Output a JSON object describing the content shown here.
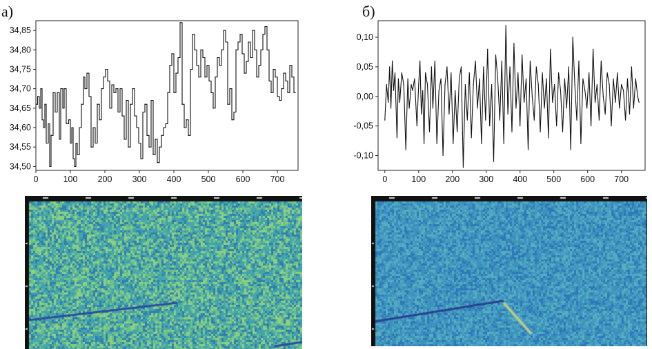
{
  "panels": {
    "a": {
      "label": "а)"
    },
    "b": {
      "label": "б)"
    }
  },
  "chart_data": [
    {
      "type": "line",
      "panel": "а)",
      "xlim": [
        0,
        760
      ],
      "ylim": [
        34.49,
        34.875
      ],
      "xticks": [
        0,
        100,
        200,
        300,
        400,
        500,
        600,
        700
      ],
      "xtick_labels": [
        "0",
        "100",
        "200",
        "300",
        "400",
        "500",
        "600",
        "700"
      ],
      "yticks": [
        34.5,
        34.55,
        34.6,
        34.65,
        34.7,
        34.75,
        34.8,
        34.85
      ],
      "ytick_labels": [
        "34,50",
        "34,55",
        "34,60",
        "34,65",
        "34,70",
        "34,75",
        "34,80",
        "34,85"
      ],
      "grid": false,
      "step": true,
      "x": [
        0,
        5,
        10,
        14,
        18,
        22,
        26,
        30,
        36,
        40,
        44,
        50,
        56,
        62,
        68,
        72,
        78,
        82,
        88,
        95,
        100,
        104,
        108,
        112,
        116,
        120,
        126,
        132,
        138,
        142,
        148,
        154,
        160,
        166,
        172,
        178,
        184,
        190,
        196,
        202,
        208,
        214,
        220,
        226,
        232,
        238,
        244,
        250,
        256,
        262,
        268,
        274,
        280,
        286,
        292,
        298,
        304,
        310,
        316,
        322,
        328,
        334,
        340,
        346,
        352,
        358,
        364,
        370,
        376,
        382,
        388,
        394,
        400,
        406,
        412,
        418,
        424,
        430,
        436,
        442,
        448,
        454,
        460,
        466,
        472,
        478,
        484,
        490,
        496,
        502,
        508,
        514,
        520,
        526,
        532,
        538,
        544,
        550,
        556,
        562,
        568,
        574,
        580,
        586,
        592,
        598,
        604,
        610,
        616,
        622,
        628,
        634,
        640,
        646,
        652,
        658,
        664,
        670,
        676,
        682,
        688,
        694,
        700,
        706,
        712,
        718,
        724,
        730,
        736,
        742,
        748,
        752
      ],
      "y": [
        34.66,
        34.68,
        34.65,
        34.7,
        34.62,
        34.6,
        34.66,
        34.56,
        34.61,
        34.5,
        34.58,
        34.69,
        34.64,
        34.69,
        34.57,
        34.7,
        34.65,
        34.7,
        34.61,
        34.62,
        34.56,
        34.6,
        34.52,
        34.5,
        34.56,
        34.53,
        34.6,
        34.66,
        34.73,
        34.7,
        34.74,
        34.68,
        34.55,
        34.6,
        34.56,
        34.66,
        34.62,
        34.7,
        34.73,
        34.75,
        34.72,
        34.65,
        34.71,
        34.69,
        34.7,
        34.64,
        34.7,
        34.63,
        34.57,
        34.67,
        34.55,
        34.66,
        34.7,
        34.63,
        34.6,
        34.56,
        34.52,
        34.64,
        34.66,
        34.58,
        34.55,
        34.67,
        34.53,
        34.57,
        34.51,
        34.55,
        34.58,
        34.6,
        34.61,
        34.69,
        34.76,
        34.79,
        34.69,
        34.74,
        34.78,
        34.87,
        34.66,
        34.6,
        34.62,
        34.58,
        34.75,
        34.84,
        34.8,
        34.76,
        34.73,
        34.8,
        34.78,
        34.73,
        34.76,
        34.72,
        34.69,
        34.65,
        34.73,
        34.78,
        34.76,
        34.8,
        34.85,
        34.82,
        34.66,
        34.7,
        34.62,
        34.64,
        34.8,
        34.82,
        34.84,
        34.79,
        34.74,
        34.77,
        34.82,
        34.78,
        34.85,
        34.8,
        34.73,
        34.76,
        34.8,
        34.84,
        34.86,
        34.8,
        34.72,
        34.69,
        34.75,
        34.73,
        34.68,
        34.67,
        34.7,
        34.74,
        34.72,
        34.69,
        34.76,
        34.73,
        34.69,
        34.69
      ]
    },
    {
      "type": "line",
      "panel": "б)",
      "xlim": [
        -20,
        770
      ],
      "ylim": [
        -0.125,
        0.128
      ],
      "xticks": [
        0,
        100,
        200,
        300,
        400,
        500,
        600,
        700
      ],
      "xtick_labels": [
        "0",
        "100",
        "200",
        "300",
        "400",
        "500",
        "600",
        "700"
      ],
      "yticks": [
        -0.1,
        -0.05,
        0.0,
        0.05,
        0.1
      ],
      "ytick_labels": [
        "-0,10",
        "-0,05",
        "0,00",
        "0,05",
        "0,10"
      ],
      "grid": false,
      "step": false,
      "x": [
        0,
        5,
        10,
        14,
        18,
        22,
        26,
        30,
        36,
        40,
        44,
        50,
        56,
        62,
        68,
        72,
        78,
        82,
        88,
        95,
        100,
        104,
        108,
        112,
        116,
        120,
        126,
        132,
        138,
        142,
        148,
        154,
        160,
        166,
        172,
        178,
        184,
        190,
        196,
        202,
        208,
        214,
        220,
        226,
        232,
        238,
        244,
        250,
        256,
        262,
        268,
        274,
        280,
        286,
        292,
        298,
        304,
        310,
        316,
        322,
        328,
        334,
        340,
        346,
        352,
        358,
        364,
        370,
        376,
        382,
        388,
        394,
        400,
        406,
        412,
        418,
        424,
        430,
        436,
        442,
        448,
        454,
        460,
        466,
        472,
        478,
        484,
        490,
        496,
        502,
        508,
        514,
        520,
        526,
        532,
        538,
        544,
        550,
        556,
        562,
        568,
        574,
        580,
        586,
        592,
        598,
        604,
        610,
        616,
        622,
        628,
        634,
        640,
        646,
        652,
        658,
        664,
        670,
        676,
        682,
        688,
        694,
        700,
        706,
        712,
        718,
        724,
        730,
        736,
        742,
        748,
        752
      ],
      "y": [
        -0.04,
        0.02,
        -0.01,
        0.05,
        -0.02,
        0.06,
        0.01,
        0.04,
        -0.07,
        0.03,
        -0.01,
        0.04,
        0.02,
        -0.09,
        0.03,
        -0.02,
        0.02,
        0.01,
        0.03,
        -0.05,
        0.02,
        0.06,
        -0.03,
        0.01,
        -0.08,
        0.04,
        0.02,
        -0.06,
        0.05,
        -0.02,
        0.06,
        -0.08,
        0.01,
        0.03,
        -0.1,
        0.02,
        0.05,
        -0.03,
        0.04,
        -0.08,
        0.01,
        -0.06,
        0.03,
        0.05,
        -0.12,
        0.02,
        -0.04,
        0.04,
        -0.07,
        0.02,
        0.06,
        -0.02,
        0.03,
        -0.08,
        0.05,
        -0.04,
        0.08,
        -0.05,
        0.02,
        -0.11,
        0.07,
        0.03,
        -0.04,
        0.06,
        -0.08,
        0.12,
        -0.03,
        0.05,
        -0.06,
        0.09,
        -0.02,
        0.04,
        -0.05,
        0.07,
        -0.01,
        0.03,
        -0.09,
        0.06,
        0.0,
        -0.04,
        0.05,
        0.02,
        -0.06,
        0.04,
        -0.02,
        0.03,
        -0.07,
        0.08,
        -0.01,
        0.02,
        -0.05,
        0.04,
        0.01,
        -0.06,
        0.03,
        -0.02,
        0.05,
        -0.09,
        0.1,
        0.02,
        -0.04,
        0.06,
        -0.08,
        0.03,
        0.01,
        -0.02,
        0.04,
        -0.05,
        0.08,
        -0.01,
        0.02,
        -0.04,
        0.06,
        0.0,
        -0.03,
        0.04,
        0.02,
        -0.05,
        0.03,
        -0.01,
        0.04,
        -0.02,
        0.02,
        0.01,
        -0.04,
        0.03,
        -0.03,
        0.05,
        -0.02,
        0.03,
        0.0,
        -0.01
      ]
    }
  ],
  "images": {
    "left": {
      "caption": "",
      "palette": [
        "#3fa0b0",
        "#6cc08a",
        "#2f7fb0",
        "#8fd080",
        "#4aa8a8"
      ],
      "streak_color": "#2a4da0"
    },
    "right": {
      "caption": "",
      "palette": [
        "#3a8fc0",
        "#4aa0c4",
        "#2f78b8",
        "#56aec0",
        "#3c94b8"
      ],
      "streak_color": "#2a3f90"
    }
  }
}
